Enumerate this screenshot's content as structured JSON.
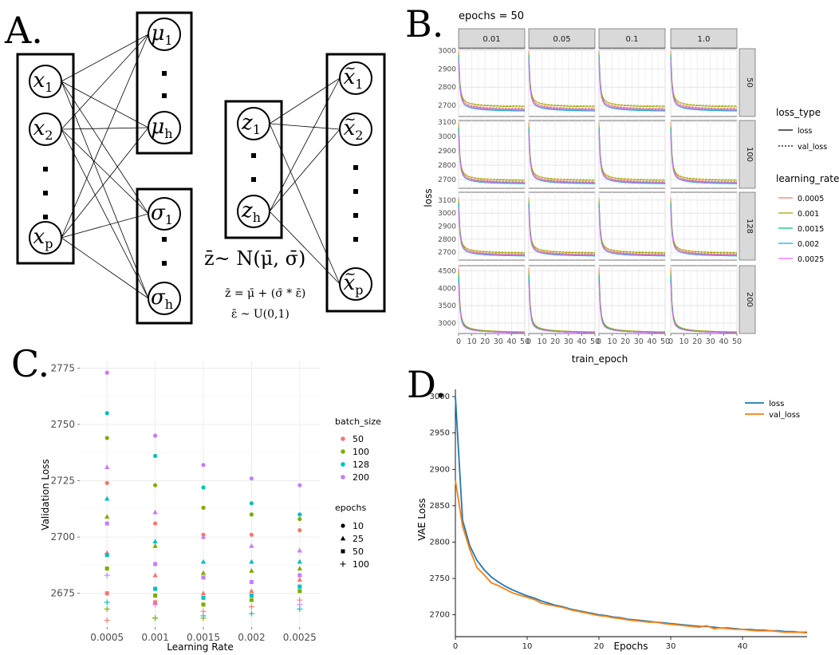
{
  "panel_letters": {
    "a": "A.",
    "b": "B.",
    "c": "C.",
    "d": "D."
  },
  "panel_a": {
    "input_nodes": [
      "x1",
      "x2",
      "xp"
    ],
    "mu_nodes": [
      "μ1",
      "μh"
    ],
    "sigma_nodes": [
      "σ1",
      "σh"
    ],
    "z_nodes": [
      "z1",
      "zh"
    ],
    "output_nodes": [
      "x̃1",
      "x̃2",
      "x̃p"
    ],
    "eq_main": "z̄~ N(μ̄, σ̄)",
    "eq_reparam": "z̄ = μ̄ + (σ̄ * ε̄)",
    "eq_eps": "ε̄ ~ U(0,1)"
  },
  "chart_data": [
    {
      "panel": "B",
      "type": "line",
      "title": "epochs = 50",
      "xlabel": "train_epoch",
      "ylabel": "loss",
      "col_strips": [
        "0.01",
        "0.05",
        "0.1",
        "1.0"
      ],
      "row_strips": [
        "50",
        "100",
        "128",
        "200"
      ],
      "x_ticks": [
        0,
        10,
        20,
        30,
        40,
        50
      ],
      "xlim": [
        0,
        50
      ],
      "row_ylim": [
        [
          2640,
          3010
        ],
        [
          2640,
          3110
        ],
        [
          2640,
          3160
        ],
        [
          2700,
          4650
        ]
      ],
      "row_yticks": [
        [
          2700,
          2800,
          2900,
          3000
        ],
        [
          2700,
          2800,
          2900,
          3000,
          3100
        ],
        [
          2700,
          2800,
          2900,
          3000,
          3100
        ],
        [
          3000,
          3500,
          4000,
          4500
        ]
      ],
      "row_start": [
        3000,
        3100,
        3120,
        4600
      ],
      "loss_type_title": "loss_type",
      "loss_types": [
        "loss",
        "val_loss"
      ],
      "lr_title": "learning_rate",
      "learning_rates": [
        "0.0005",
        "0.001",
        "0.0015",
        "0.002",
        "0.0025"
      ],
      "lr_colors": [
        "#F8766D",
        "#A3A500",
        "#00BF7D",
        "#00B0F6",
        "#E76BF3"
      ],
      "lr_end": [
        2675,
        2688,
        2668,
        2665,
        2670
      ],
      "grid": true,
      "legend_position": "right"
    },
    {
      "panel": "C",
      "type": "scatter",
      "xlabel": "Learning Rate",
      "ylabel": "Validation Loss",
      "categories": [
        "0.0005",
        "0.001",
        "0.0015",
        "0.002",
        "0.0025"
      ],
      "ylim": [
        2660,
        2778
      ],
      "yticks": [
        2675,
        2700,
        2725,
        2750,
        2775
      ],
      "batch_title": "batch_size",
      "batch_sizes": [
        "50",
        "100",
        "128",
        "200"
      ],
      "batch_colors": [
        "#F8766D",
        "#7CAE00",
        "#00BFC4",
        "#C77CFF"
      ],
      "epochs_title": "epochs",
      "epochs": [
        "10",
        "25",
        "50",
        "100"
      ],
      "points": [
        {
          "x": 0,
          "y": 2773,
          "b": 3,
          "e": 0
        },
        {
          "x": 0,
          "y": 2755,
          "b": 2,
          "e": 0
        },
        {
          "x": 0,
          "y": 2744,
          "b": 1,
          "e": 0
        },
        {
          "x": 0,
          "y": 2731,
          "b": 3,
          "e": 1
        },
        {
          "x": 0,
          "y": 2724,
          "b": 0,
          "e": 0
        },
        {
          "x": 0,
          "y": 2717,
          "b": 2,
          "e": 1
        },
        {
          "x": 0,
          "y": 2709,
          "b": 1,
          "e": 1
        },
        {
          "x": 0,
          "y": 2706,
          "b": 3,
          "e": 2
        },
        {
          "x": 0,
          "y": 2693,
          "b": 0,
          "e": 1
        },
        {
          "x": 0,
          "y": 2692,
          "b": 2,
          "e": 2
        },
        {
          "x": 0,
          "y": 2686,
          "b": 1,
          "e": 2
        },
        {
          "x": 0,
          "y": 2683,
          "b": 3,
          "e": 3
        },
        {
          "x": 0,
          "y": 2675,
          "b": 0,
          "e": 2
        },
        {
          "x": 0,
          "y": 2671,
          "b": 2,
          "e": 3
        },
        {
          "x": 0,
          "y": 2668,
          "b": 1,
          "e": 3
        },
        {
          "x": 0,
          "y": 2663,
          "b": 0,
          "e": 3
        },
        {
          "x": 1,
          "y": 2745,
          "b": 3,
          "e": 0
        },
        {
          "x": 1,
          "y": 2736,
          "b": 2,
          "e": 0
        },
        {
          "x": 1,
          "y": 2723,
          "b": 1,
          "e": 0
        },
        {
          "x": 1,
          "y": 2711,
          "b": 3,
          "e": 1
        },
        {
          "x": 1,
          "y": 2706,
          "b": 0,
          "e": 0
        },
        {
          "x": 1,
          "y": 2698,
          "b": 2,
          "e": 1
        },
        {
          "x": 1,
          "y": 2696,
          "b": 1,
          "e": 1
        },
        {
          "x": 1,
          "y": 2688,
          "b": 3,
          "e": 2
        },
        {
          "x": 1,
          "y": 2683,
          "b": 0,
          "e": 1
        },
        {
          "x": 1,
          "y": 2677,
          "b": 2,
          "e": 2
        },
        {
          "x": 1,
          "y": 2674,
          "b": 1,
          "e": 2
        },
        {
          "x": 1,
          "y": 2671,
          "b": 0,
          "e": 2
        },
        {
          "x": 1,
          "y": 2670,
          "b": 3,
          "e": 3
        },
        {
          "x": 1,
          "y": 2664,
          "b": 2,
          "e": 3
        },
        {
          "x": 1,
          "y": 2664,
          "b": 1,
          "e": 3
        },
        {
          "x": 2,
          "y": 2732,
          "b": 3,
          "e": 0
        },
        {
          "x": 2,
          "y": 2722,
          "b": 2,
          "e": 0
        },
        {
          "x": 2,
          "y": 2713,
          "b": 1,
          "e": 0
        },
        {
          "x": 2,
          "y": 2701,
          "b": 0,
          "e": 0
        },
        {
          "x": 2,
          "y": 2700,
          "b": 3,
          "e": 1
        },
        {
          "x": 2,
          "y": 2689,
          "b": 2,
          "e": 1
        },
        {
          "x": 2,
          "y": 2684,
          "b": 1,
          "e": 1
        },
        {
          "x": 2,
          "y": 2682,
          "b": 3,
          "e": 2
        },
        {
          "x": 2,
          "y": 2675,
          "b": 0,
          "e": 1
        },
        {
          "x": 2,
          "y": 2673,
          "b": 2,
          "e": 2
        },
        {
          "x": 2,
          "y": 2670,
          "b": 1,
          "e": 2
        },
        {
          "x": 2,
          "y": 2667,
          "b": 0,
          "e": 3
        },
        {
          "x": 2,
          "y": 2665,
          "b": 2,
          "e": 3
        },
        {
          "x": 2,
          "y": 2664,
          "b": 1,
          "e": 3
        },
        {
          "x": 3,
          "y": 2726,
          "b": 3,
          "e": 0
        },
        {
          "x": 3,
          "y": 2715,
          "b": 2,
          "e": 0
        },
        {
          "x": 3,
          "y": 2710,
          "b": 1,
          "e": 0
        },
        {
          "x": 3,
          "y": 2701,
          "b": 0,
          "e": 0
        },
        {
          "x": 3,
          "y": 2696,
          "b": 3,
          "e": 1
        },
        {
          "x": 3,
          "y": 2689,
          "b": 2,
          "e": 1
        },
        {
          "x": 3,
          "y": 2685,
          "b": 1,
          "e": 1
        },
        {
          "x": 3,
          "y": 2680,
          "b": 3,
          "e": 2
        },
        {
          "x": 3,
          "y": 2676,
          "b": 0,
          "e": 1
        },
        {
          "x": 3,
          "y": 2674,
          "b": 2,
          "e": 2
        },
        {
          "x": 3,
          "y": 2672,
          "b": 1,
          "e": 2
        },
        {
          "x": 3,
          "y": 2669,
          "b": 0,
          "e": 3
        },
        {
          "x": 3,
          "y": 2666,
          "b": 2,
          "e": 3
        },
        {
          "x": 4,
          "y": 2723,
          "b": 3,
          "e": 0
        },
        {
          "x": 4,
          "y": 2710,
          "b": 2,
          "e": 0
        },
        {
          "x": 4,
          "y": 2708,
          "b": 1,
          "e": 0
        },
        {
          "x": 4,
          "y": 2703,
          "b": 0,
          "e": 0
        },
        {
          "x": 4,
          "y": 2694,
          "b": 3,
          "e": 1
        },
        {
          "x": 4,
          "y": 2689,
          "b": 2,
          "e": 1
        },
        {
          "x": 4,
          "y": 2686,
          "b": 1,
          "e": 1
        },
        {
          "x": 4,
          "y": 2683,
          "b": 3,
          "e": 2
        },
        {
          "x": 4,
          "y": 2681,
          "b": 0,
          "e": 1
        },
        {
          "x": 4,
          "y": 2678,
          "b": 2,
          "e": 2
        },
        {
          "x": 4,
          "y": 2676,
          "b": 1,
          "e": 2
        },
        {
          "x": 4,
          "y": 2672,
          "b": 0,
          "e": 3
        },
        {
          "x": 4,
          "y": 2670,
          "b": 3,
          "e": 3
        },
        {
          "x": 4,
          "y": 2668,
          "b": 2,
          "e": 3
        }
      ],
      "grid": true,
      "legend_position": "right"
    },
    {
      "panel": "D",
      "type": "line",
      "xlabel": "Epochs",
      "ylabel": "VAE Loss",
      "xlim": [
        0,
        49
      ],
      "ylim": [
        2670,
        3010
      ],
      "xticks": [
        0,
        10,
        20,
        30,
        40
      ],
      "yticks": [
        2700,
        2750,
        2800,
        2850,
        2900,
        2950,
        3000
      ],
      "x": [
        0,
        1,
        2,
        3,
        4,
        5,
        6,
        7,
        8,
        9,
        10,
        11,
        12,
        13,
        14,
        15,
        16,
        17,
        18,
        19,
        20,
        21,
        22,
        23,
        24,
        25,
        26,
        27,
        28,
        29,
        30,
        31,
        32,
        33,
        34,
        35,
        36,
        37,
        38,
        39,
        40,
        41,
        42,
        43,
        44,
        45,
        46,
        47,
        48,
        49
      ],
      "series": [
        {
          "name": "loss",
          "color": "#1f77b4",
          "values": [
            3000,
            2830,
            2795,
            2775,
            2762,
            2752,
            2745,
            2739,
            2734,
            2730,
            2726,
            2723,
            2719,
            2716,
            2713,
            2711,
            2708,
            2706,
            2704,
            2702,
            2700,
            2699,
            2697,
            2696,
            2694,
            2693,
            2692,
            2691,
            2690,
            2689,
            2688,
            2687,
            2686,
            2685,
            2684,
            2684,
            2683,
            2682,
            2682,
            2681,
            2680,
            2680,
            2679,
            2679,
            2678,
            2678,
            2677,
            2677,
            2676,
            2676
          ]
        },
        {
          "name": "val_loss",
          "color": "#ff7f0e",
          "values": [
            2885,
            2822,
            2790,
            2765,
            2755,
            2744,
            2740,
            2735,
            2730,
            2727,
            2724,
            2721,
            2716,
            2714,
            2712,
            2710,
            2707,
            2705,
            2703,
            2701,
            2699,
            2698,
            2696,
            2695,
            2693,
            2692,
            2691,
            2690,
            2690,
            2688,
            2687,
            2686,
            2685,
            2684,
            2683,
            2685,
            2681,
            2682,
            2681,
            2680,
            2680,
            2679,
            2678,
            2678,
            2678,
            2677,
            2676,
            2676,
            2676,
            2675
          ]
        }
      ],
      "legend_position": "top-right"
    }
  ]
}
